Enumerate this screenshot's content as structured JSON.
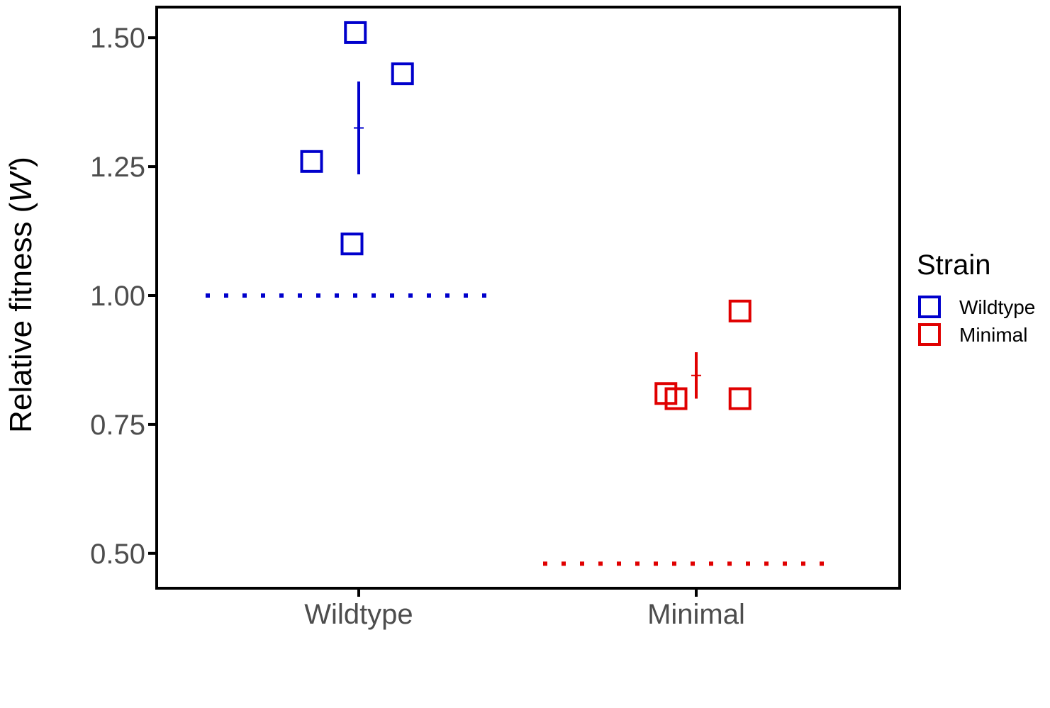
{
  "chart_data": {
    "type": "scatter",
    "ylabel_prefix": "Relative fitness (",
    "ylabel_italic": "W'",
    "ylabel_suffix": ")",
    "categories": [
      "Wildtype",
      "Minimal"
    ],
    "yticks": [
      "1.50",
      "1.25",
      "1.00",
      "0.75",
      "0.50"
    ],
    "ytick_values": [
      1.5,
      1.25,
      1.0,
      0.75,
      0.5
    ],
    "ylim": [
      0.435,
      1.562
    ],
    "grid": false,
    "legend": {
      "title": "Strain",
      "placement": "right",
      "entries": [
        "Wildtype",
        "Minimal"
      ]
    },
    "series": [
      {
        "name": "Wildtype",
        "color": "#0000cc",
        "category_index": 0,
        "points": [
          {
            "jitter": -0.14,
            "y": 1.26
          },
          {
            "jitter": -0.01,
            "y": 1.51
          },
          {
            "jitter": 0.13,
            "y": 1.43
          },
          {
            "jitter": -0.02,
            "y": 1.1
          }
        ],
        "mean": 1.325,
        "error_low": 1.235,
        "error_high": 1.415,
        "reference_y": 1.0
      },
      {
        "name": "Minimal",
        "color": "#e00000",
        "category_index": 1,
        "points": [
          {
            "jitter": -0.09,
            "y": 0.81
          },
          {
            "jitter": -0.06,
            "y": 0.8
          },
          {
            "jitter": 0.13,
            "y": 0.97
          },
          {
            "jitter": 0.13,
            "y": 0.8
          }
        ],
        "mean": 0.845,
        "error_low": 0.8,
        "error_high": 0.89,
        "reference_y": 0.48
      }
    ]
  }
}
